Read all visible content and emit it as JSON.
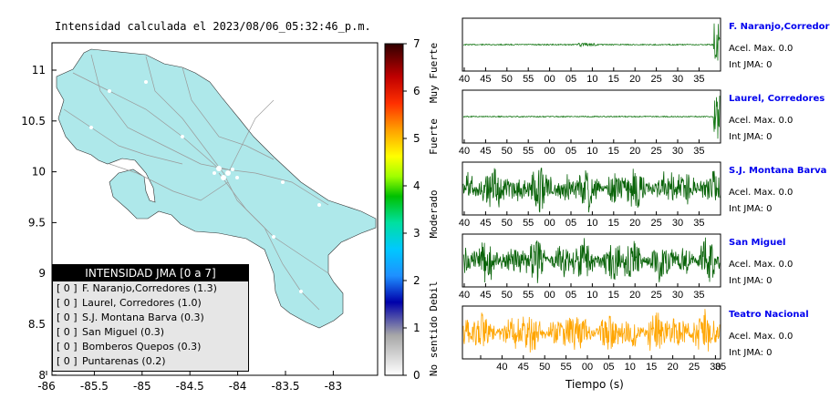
{
  "map": {
    "title": "Intensidad calculada el 2023/08/06_05:32:46_p.m.",
    "y_ticks": [
      "11",
      "10.5",
      "10",
      "9.5",
      "9",
      "8.5",
      "8"
    ],
    "x_ticks": [
      "-86",
      "-85.5",
      "-85",
      "-84.5",
      "-84",
      "-83.5",
      "-83"
    ],
    "land_color": "#aee8ea",
    "sea_color": "#ffffff"
  },
  "legend": {
    "header": "INTENSIDAD JMA [0 a 7]",
    "items": [
      {
        "bracket": "[ 0 ]",
        "label": "F. Naranjo,Corredores (1.3)"
      },
      {
        "bracket": "[ 0 ]",
        "label": "Laurel, Corredores (1.0)"
      },
      {
        "bracket": "[ 0 ]",
        "label": "S.J. Montana Barva (0.3)"
      },
      {
        "bracket": "[ 0 ]",
        "label": "San Miguel (0.3)"
      },
      {
        "bracket": "[ 0 ]",
        "label": "Bomberos Quepos (0.3)"
      },
      {
        "bracket": "[ 0 ]",
        "label": "Puntarenas (0.2)"
      }
    ]
  },
  "colorbar": {
    "ticks": [
      "0",
      "1",
      "2",
      "3",
      "4",
      "5",
      "6",
      "7"
    ],
    "labels": [
      "No sentido",
      "Debil",
      "Moderado",
      "Fuerte",
      "Muy Fuerte"
    ]
  },
  "stations": [
    {
      "name": "F. Naranjo,Corredores",
      "acel": "Acel. Max. 0.0",
      "int": "Int JMA: 0",
      "color": "#1a7a1a",
      "ticks": [
        "40",
        "45",
        "50",
        "55",
        "00",
        "05",
        "10",
        "15",
        "20",
        "25",
        "30",
        "35"
      ],
      "style": "quiet-spike"
    },
    {
      "name": "Laurel, Corredores",
      "acel": "Acel. Max. 0.0",
      "int": "Int JMA: 0",
      "color": "#1a7a1a",
      "ticks": [
        "40",
        "45",
        "50",
        "55",
        "00",
        "05",
        "10",
        "15",
        "20",
        "25",
        "30",
        "35"
      ],
      "style": "quiet-spike2"
    },
    {
      "name": "S.J. Montana Barva",
      "acel": "Acel. Max. 0.0",
      "int": "Int JMA: 0",
      "color": "#0a640a",
      "ticks": [
        "40",
        "45",
        "50",
        "55",
        "00",
        "05",
        "10",
        "15",
        "20",
        "25",
        "30",
        "35"
      ],
      "style": "noise"
    },
    {
      "name": "San Miguel",
      "acel": "Acel. Max. 0.0",
      "int": "Int JMA: 0",
      "color": "#0a640a",
      "ticks": [
        "40",
        "45",
        "50",
        "55",
        "00",
        "05",
        "10",
        "15",
        "20",
        "25",
        "30",
        "35"
      ],
      "style": "noise"
    },
    {
      "name": "Teatro Nacional",
      "acel": "Acel. Max. 0.0",
      "int": "Int JMA: 0",
      "color": "#ffa500",
      "ticks": [
        "40",
        "45",
        "50",
        "55",
        "00",
        "05",
        "10",
        "15",
        "20",
        "25",
        "30",
        "35"
      ],
      "style": "noise"
    }
  ],
  "xaxis_label": "Tiempo (s)"
}
